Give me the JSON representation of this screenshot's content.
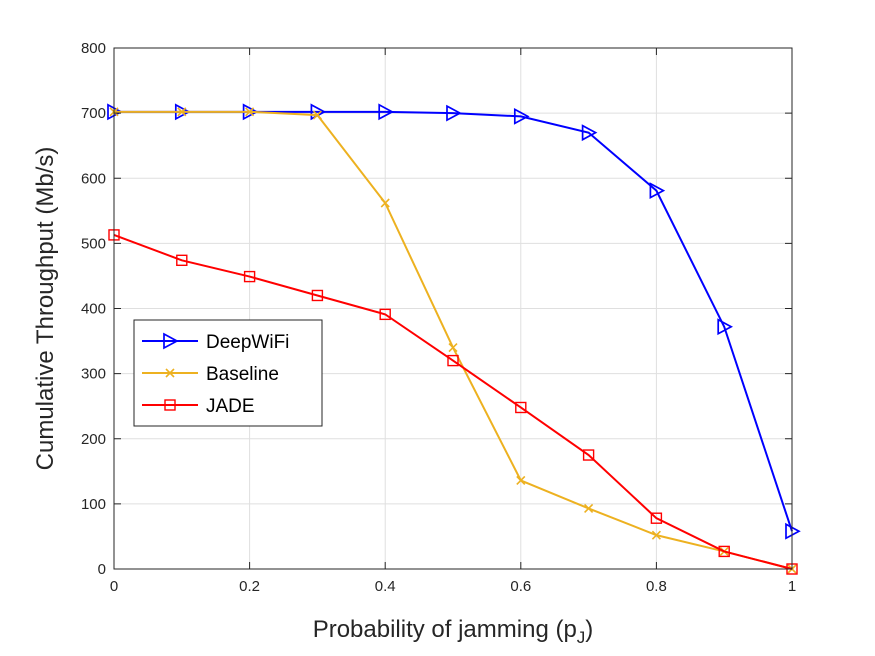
{
  "chart_data": {
    "type": "line",
    "title": "",
    "xlabel": "Probability of jamming (p",
    "xlabel_subscript": "J",
    "xlabel_suffix": ")",
    "ylabel": "Cumulative Throughput (Mb/s)",
    "xlim": [
      0,
      1
    ],
    "ylim": [
      0,
      800
    ],
    "xticks": [
      0,
      0.2,
      0.4,
      0.6,
      0.8,
      1
    ],
    "xtick_labels": [
      "0",
      "0.2",
      "0.4",
      "0.6",
      "0.8",
      "1"
    ],
    "yticks": [
      0,
      100,
      200,
      300,
      400,
      500,
      600,
      700,
      800
    ],
    "ytick_labels": [
      "0",
      "100",
      "200",
      "300",
      "400",
      "500",
      "600",
      "700",
      "800"
    ],
    "grid": true,
    "legend_position": "middle-left",
    "x": [
      0,
      0.1,
      0.2,
      0.3,
      0.4,
      0.5,
      0.6,
      0.7,
      0.8,
      0.9,
      1.0
    ],
    "series": [
      {
        "name": "DeepWiFi",
        "color": "#0000ff",
        "marker": "triangle-right",
        "values": [
          702,
          702,
          702,
          702,
          702,
          700,
          695,
          670,
          581,
          372,
          58
        ]
      },
      {
        "name": "Baseline",
        "color": "#edb120",
        "marker": "x",
        "values": [
          702,
          702,
          702,
          697,
          562,
          340,
          136,
          93,
          52,
          27,
          0
        ]
      },
      {
        "name": "JADE",
        "color": "#ff0000",
        "marker": "square",
        "values": [
          513,
          474,
          449,
          420,
          391,
          320,
          248,
          175,
          78,
          27,
          0
        ]
      }
    ]
  }
}
